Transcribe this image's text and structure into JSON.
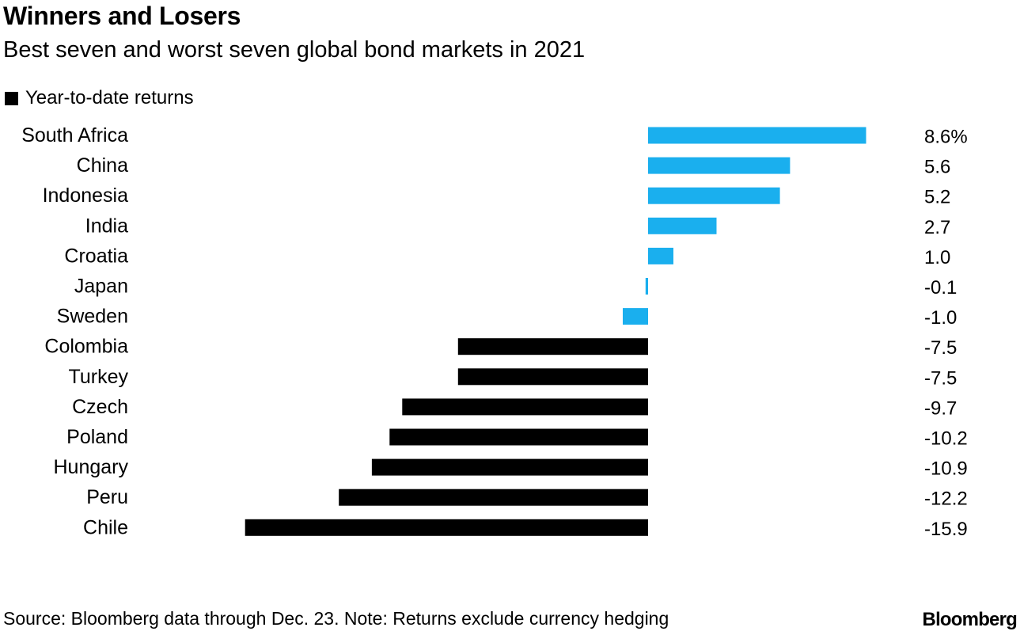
{
  "header": {
    "title": "Winners and Losers",
    "subtitle": "Best seven and worst seven global bond markets in 2021"
  },
  "legend": {
    "label": "Year-to-date returns"
  },
  "footer": {
    "source": "Source: Bloomberg data through Dec. 23. Note: Returns exclude currency hedging",
    "brand": "Bloomberg"
  },
  "colors": {
    "positive_bar": "#1aafee",
    "negative_bar": "#000000",
    "best_seven": "#1aafee",
    "worst_seven": "#000000"
  },
  "chart_data": {
    "type": "bar",
    "orientation": "horizontal",
    "title": "Winners and Losers",
    "subtitle": "Best seven and worst seven global bond markets in 2021",
    "legend": [
      "Year-to-date returns"
    ],
    "legend_position": "top-left",
    "grid": false,
    "xlim": [
      -16,
      9
    ],
    "categories": [
      "South Africa",
      "China",
      "Indonesia",
      "India",
      "Croatia",
      "Japan",
      "Sweden",
      "Colombia",
      "Turkey",
      "Czech",
      "Poland",
      "Hungary",
      "Peru",
      "Chile"
    ],
    "groups": [
      "best",
      "best",
      "best",
      "best",
      "best",
      "best",
      "best",
      "worst",
      "worst",
      "worst",
      "worst",
      "worst",
      "worst",
      "worst"
    ],
    "series": [
      {
        "name": "Year-to-date returns",
        "unit": "%",
        "values": [
          8.6,
          5.6,
          5.2,
          2.7,
          1.0,
          -0.1,
          -1.0,
          -7.5,
          -7.5,
          -9.7,
          -10.2,
          -10.9,
          -12.2,
          -15.9
        ]
      }
    ],
    "value_labels": [
      "8.6%",
      "5.6",
      "5.2",
      "2.7",
      "1.0",
      "-0.1",
      "-1.0",
      "-7.5",
      "-7.5",
      "-9.7",
      "-10.2",
      "-10.9",
      "-12.2",
      "-15.9"
    ]
  }
}
